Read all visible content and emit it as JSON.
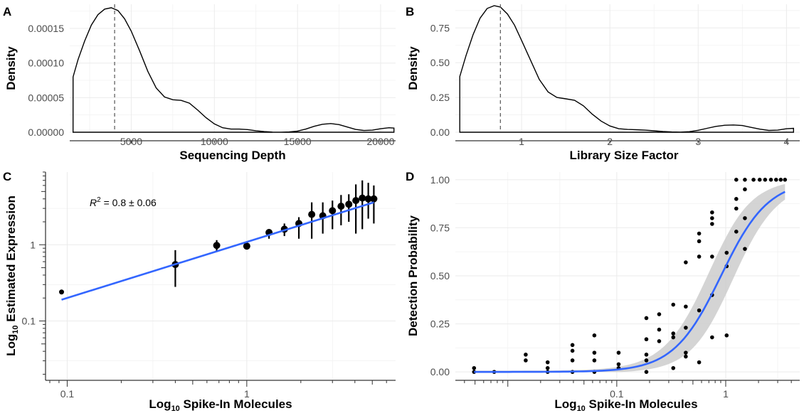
{
  "panels": [
    {
      "label": "A",
      "type": "line",
      "xlabel": "Sequencing Depth",
      "ylabel": "Density",
      "xlim": [
        1300,
        20900
      ],
      "ylim": [
        0,
        0.000185
      ],
      "xticks": [
        5000,
        10000,
        15000,
        20000
      ],
      "xtick_labels": [
        "5000",
        "10000",
        "15000",
        "20000"
      ],
      "yticks": [
        0,
        5e-05,
        0.0001,
        0.00015
      ],
      "ytick_labels": [
        "0.00000",
        "0.00005",
        "0.00010",
        "0.00015"
      ],
      "vline": 4000,
      "x": [
        1500,
        1800,
        2200,
        2600,
        3000,
        3400,
        3800,
        4200,
        4600,
        5000,
        5500,
        6000,
        6500,
        7000,
        7500,
        8000,
        8500,
        9000,
        9500,
        10000,
        10500,
        11000,
        11500,
        12000,
        12500,
        13000,
        13500,
        14000,
        14500,
        15000,
        15500,
        16000,
        16500,
        17000,
        17500,
        18000,
        18500,
        19000,
        19500,
        20000,
        20500,
        20800
      ],
      "y": [
        8e-05,
        0.000105,
        0.000132,
        0.000155,
        0.00017,
        0.000178,
        0.00018,
        0.000176,
        0.000164,
        0.000146,
        0.000118,
        8.8e-05,
        6.4e-05,
        5.1e-05,
        4.7e-05,
        4.6e-05,
        4.2e-05,
        3.2e-05,
        2.1e-05,
        1.2e-05,
        6.5e-06,
        4.5e-06,
        4.5e-06,
        3.8e-06,
        2.2e-06,
        9e-07,
        2e-07,
        1e-07,
        4e-07,
        1.6e-06,
        4.5e-06,
        8.5e-06,
        1.15e-05,
        1.25e-05,
        1.1e-05,
        7.5e-06,
        4e-06,
        2.5e-06,
        3e-06,
        5e-06,
        6.5e-06,
        6e-06
      ]
    },
    {
      "label": "B",
      "type": "line",
      "xlabel": "Library Size Factor",
      "ylabel": "Density",
      "xlim": [
        0.25,
        4.15
      ],
      "ylim": [
        0,
        0.92
      ],
      "xticks": [
        1,
        2,
        3,
        4
      ],
      "xtick_labels": [
        "1",
        "2",
        "3",
        "4"
      ],
      "yticks": [
        0,
        0.25,
        0.5,
        0.75
      ],
      "ytick_labels": [
        "0.00",
        "0.25",
        "0.50",
        "0.75"
      ],
      "vline": 0.76,
      "x": [
        0.3,
        0.37,
        0.45,
        0.53,
        0.61,
        0.69,
        0.76,
        0.84,
        0.92,
        1.0,
        1.1,
        1.2,
        1.3,
        1.4,
        1.5,
        1.6,
        1.7,
        1.8,
        1.9,
        2.0,
        2.1,
        2.2,
        2.3,
        2.4,
        2.5,
        2.6,
        2.7,
        2.8,
        2.9,
        3.0,
        3.1,
        3.2,
        3.3,
        3.4,
        3.5,
        3.6,
        3.7,
        3.8,
        3.9,
        4.0,
        4.08
      ],
      "y": [
        0.4,
        0.55,
        0.7,
        0.82,
        0.89,
        0.91,
        0.9,
        0.85,
        0.77,
        0.66,
        0.52,
        0.38,
        0.29,
        0.25,
        0.24,
        0.23,
        0.19,
        0.13,
        0.08,
        0.045,
        0.025,
        0.02,
        0.018,
        0.015,
        0.01,
        0.005,
        0.002,
        0.001,
        0.004,
        0.014,
        0.028,
        0.042,
        0.05,
        0.052,
        0.048,
        0.035,
        0.022,
        0.013,
        0.015,
        0.025,
        0.028
      ]
    },
    {
      "label": "C",
      "type": "scatter",
      "xlabel_main": "Log",
      "xlabel_sub": "10",
      "xlabel_rest": " Spike-In Molecules",
      "ylabel_main": "Log",
      "ylabel_sub": "10",
      "ylabel_rest": " Estimated Expression",
      "annotation_main": "R",
      "annotation_sup": "2",
      "annotation_rest": " = 0.8 ± 0.06",
      "xscale": "log",
      "yscale": "log",
      "xlim": [
        0.08,
        6.5
      ],
      "ylim": [
        0.017,
        9
      ],
      "xticks": [
        0.1,
        1
      ],
      "xtick_labels": [
        "0.1",
        "1"
      ],
      "yticks": [
        0.1,
        1
      ],
      "ytick_labels": [
        "0.1",
        "1"
      ],
      "points": [
        {
          "x": 0.093,
          "y": 0.24,
          "lo": 0.23,
          "hi": 0.25
        },
        {
          "x": 0.4,
          "y": 0.55,
          "lo": 0.28,
          "hi": 0.85
        },
        {
          "x": 0.68,
          "y": 0.98,
          "lo": 0.82,
          "hi": 1.15
        },
        {
          "x": 1.0,
          "y": 0.96,
          "lo": 0.93,
          "hi": 0.99
        },
        {
          "x": 1.33,
          "y": 1.45,
          "lo": 1.2,
          "hi": 1.6
        },
        {
          "x": 1.62,
          "y": 1.6,
          "lo": 1.3,
          "hi": 1.9
        },
        {
          "x": 1.95,
          "y": 1.9,
          "lo": 1.2,
          "hi": 2.3
        },
        {
          "x": 2.3,
          "y": 2.5,
          "lo": 1.2,
          "hi": 3.6
        },
        {
          "x": 2.65,
          "y": 2.4,
          "lo": 1.4,
          "hi": 3.6
        },
        {
          "x": 3.0,
          "y": 2.8,
          "lo": 1.6,
          "hi": 3.8
        },
        {
          "x": 3.35,
          "y": 3.2,
          "lo": 1.8,
          "hi": 4.5
        },
        {
          "x": 3.7,
          "y": 3.4,
          "lo": 2.0,
          "hi": 4.6
        },
        {
          "x": 4.05,
          "y": 3.8,
          "lo": 1.4,
          "hi": 6.2
        },
        {
          "x": 4.4,
          "y": 4.1,
          "lo": 1.6,
          "hi": 7.0
        },
        {
          "x": 4.75,
          "y": 4.0,
          "lo": 2.2,
          "hi": 6.5
        },
        {
          "x": 5.1,
          "y": 4.0,
          "lo": 1.9,
          "hi": 6.0
        }
      ],
      "fit_line": {
        "x": [
          0.093,
          5.1
        ],
        "y": [
          0.19,
          3.6
        ]
      }
    },
    {
      "label": "D",
      "type": "scatter",
      "xlabel_main": "Log",
      "xlabel_sub": "10",
      "xlabel_rest": " Spike-In Molecules",
      "ylabel": "Detection Probability",
      "xscale": "log",
      "xlim": [
        0.0033,
        4.5
      ],
      "ylim": [
        -0.04,
        1.04
      ],
      "xticks": [
        0.1,
        1
      ],
      "xtick_labels": [
        "0.1",
        "1"
      ],
      "yticks": [
        0,
        0.25,
        0.5,
        0.75,
        1
      ],
      "ytick_labels": [
        "0.00",
        "0.25",
        "0.50",
        "0.75",
        "1.00"
      ],
      "points": [
        [
          0.0049,
          0.0
        ],
        [
          0.0049,
          0.02
        ],
        [
          0.0075,
          0.0
        ],
        [
          0.0146,
          0.09
        ],
        [
          0.0146,
          0.06
        ],
        [
          0.0232,
          0.0
        ],
        [
          0.0232,
          0.02
        ],
        [
          0.0232,
          0.05
        ],
        [
          0.0392,
          0.0
        ],
        [
          0.0392,
          0.06
        ],
        [
          0.0392,
          0.11
        ],
        [
          0.0392,
          0.14
        ],
        [
          0.0623,
          0.0
        ],
        [
          0.0623,
          0.06
        ],
        [
          0.0623,
          0.1
        ],
        [
          0.0623,
          0.19
        ],
        [
          0.104,
          0.02
        ],
        [
          0.104,
          0.04
        ],
        [
          0.104,
          0.1
        ],
        [
          0.187,
          0.0
        ],
        [
          0.187,
          0.06
        ],
        [
          0.187,
          0.09
        ],
        [
          0.187,
          0.17
        ],
        [
          0.187,
          0.28
        ],
        [
          0.245,
          0.16
        ],
        [
          0.245,
          0.22
        ],
        [
          0.245,
          0.3
        ],
        [
          0.33,
          0.02
        ],
        [
          0.33,
          0.18
        ],
        [
          0.33,
          0.2
        ],
        [
          0.33,
          0.35
        ],
        [
          0.43,
          0.08
        ],
        [
          0.43,
          0.1
        ],
        [
          0.43,
          0.23
        ],
        [
          0.43,
          0.34
        ],
        [
          0.43,
          0.57
        ],
        [
          0.57,
          0.05
        ],
        [
          0.57,
          0.32
        ],
        [
          0.57,
          0.6
        ],
        [
          0.57,
          0.68
        ],
        [
          0.57,
          0.72
        ],
        [
          0.75,
          0.18
        ],
        [
          0.75,
          0.4
        ],
        [
          0.75,
          0.6
        ],
        [
          0.75,
          0.77
        ],
        [
          0.75,
          0.8
        ],
        [
          0.75,
          0.83
        ],
        [
          1.02,
          0.19
        ],
        [
          1.02,
          0.55
        ],
        [
          1.02,
          0.62
        ],
        [
          1.25,
          0.73
        ],
        [
          1.25,
          0.85
        ],
        [
          1.25,
          0.9
        ],
        [
          1.25,
          1.0
        ],
        [
          1.5,
          0.64
        ],
        [
          1.5,
          0.8
        ],
        [
          1.5,
          0.95
        ],
        [
          1.5,
          1.0
        ],
        [
          1.8,
          1.0
        ],
        [
          2.05,
          1.0
        ],
        [
          2.3,
          1.0
        ],
        [
          2.6,
          1.0
        ],
        [
          2.9,
          1.0
        ],
        [
          3.2,
          1.0
        ],
        [
          3.5,
          1.0
        ]
      ],
      "fit_curve": {
        "intercept": 0.2,
        "slope": 4.6
      },
      "band_width": 0.09
    }
  ],
  "colors": {
    "fit": "#3366ff",
    "band": "#cccccc",
    "points": "#000000"
  }
}
